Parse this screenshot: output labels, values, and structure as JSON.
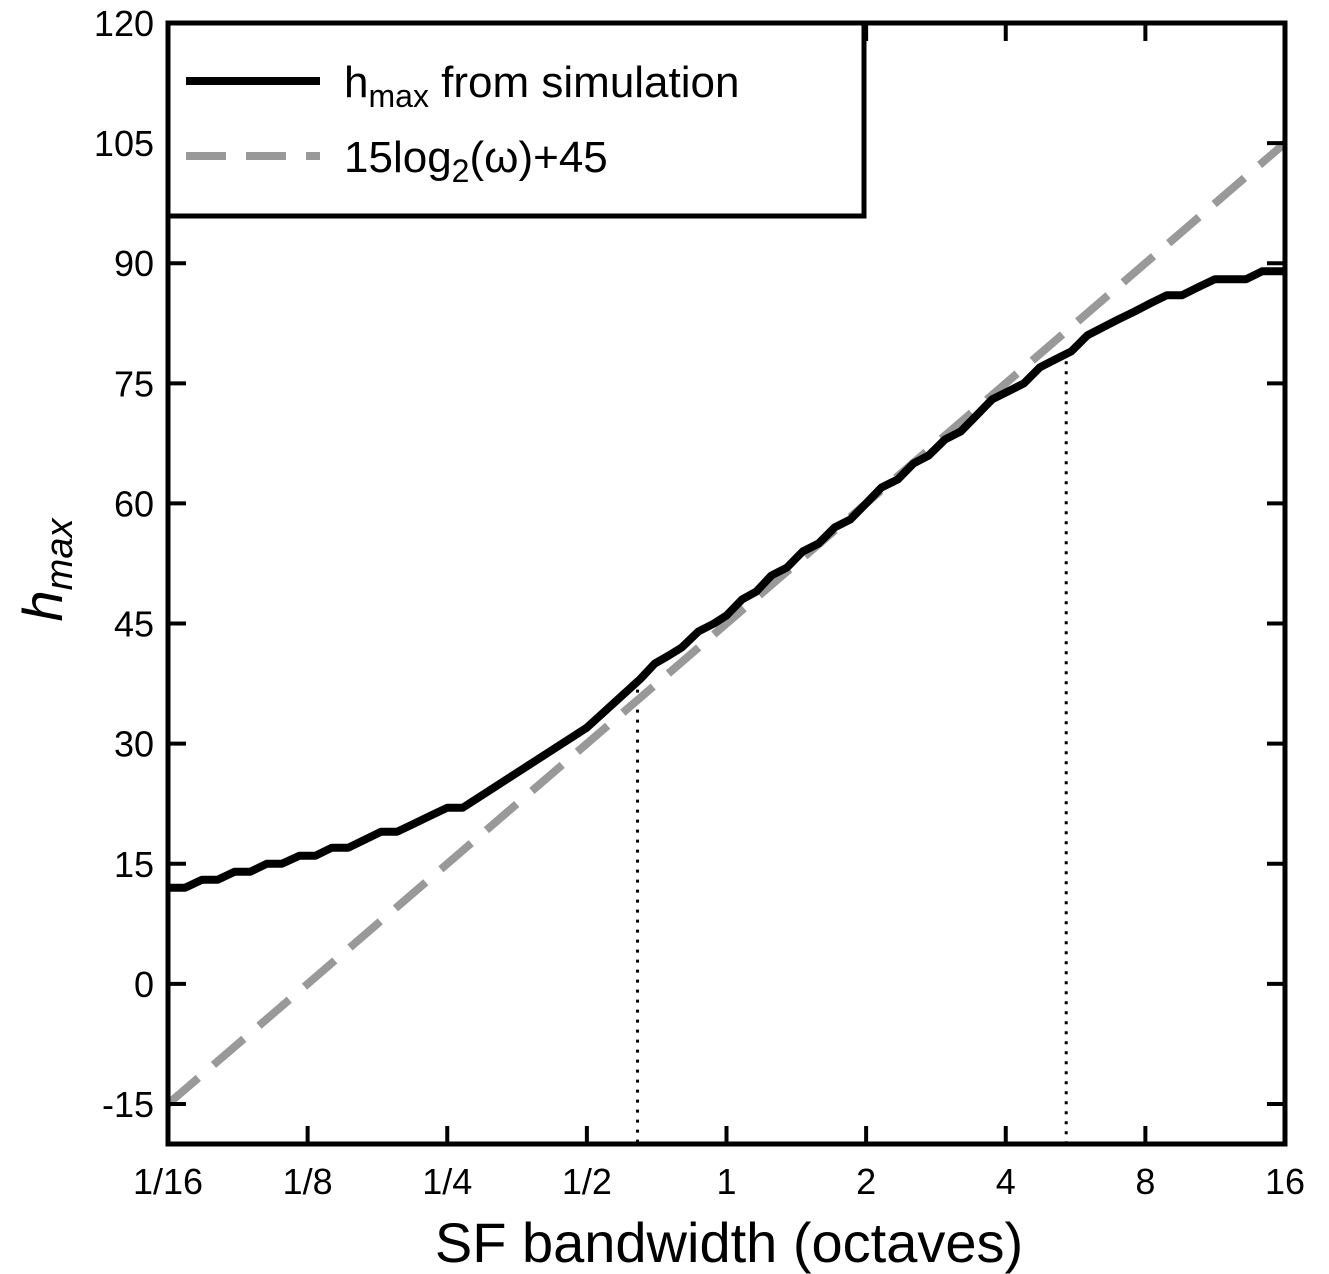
{
  "chart_data": {
    "type": "line",
    "xlabel": "SF bandwidth (octaves)",
    "ylabel": {
      "main": "h",
      "sub": "max"
    },
    "x_scale": "log2",
    "xlim": [
      0.0625,
      16
    ],
    "ylim": [
      -20,
      120
    ],
    "x_ticks": [
      {
        "value": 0.0625,
        "label": "1/16"
      },
      {
        "value": 0.125,
        "label": "1/8"
      },
      {
        "value": 0.25,
        "label": "1/4"
      },
      {
        "value": 0.5,
        "label": "1/2"
      },
      {
        "value": 1,
        "label": "1"
      },
      {
        "value": 2,
        "label": "2"
      },
      {
        "value": 4,
        "label": "4"
      },
      {
        "value": 8,
        "label": "8"
      },
      {
        "value": 16,
        "label": "16"
      }
    ],
    "y_ticks": [
      {
        "value": -15,
        "label": "-15"
      },
      {
        "value": 0,
        "label": "0"
      },
      {
        "value": 15,
        "label": "15"
      },
      {
        "value": 30,
        "label": "30"
      },
      {
        "value": 45,
        "label": "45"
      },
      {
        "value": 60,
        "label": "60"
      },
      {
        "value": 75,
        "label": "75"
      },
      {
        "value": 90,
        "label": "90"
      },
      {
        "value": 105,
        "label": "105"
      },
      {
        "value": 120,
        "label": "120"
      }
    ],
    "grid": false,
    "legend_position": "top-left",
    "series": [
      {
        "name": "h_max from simulation",
        "legend": {
          "main": "h",
          "sub": "max",
          "rest": " from simulation"
        },
        "color": "#000000",
        "style": "solid",
        "points": [
          [
            0.0625,
            12
          ],
          [
            0.068,
            12
          ],
          [
            0.074,
            13
          ],
          [
            0.08,
            13
          ],
          [
            0.087,
            14
          ],
          [
            0.094,
            14
          ],
          [
            0.102,
            15
          ],
          [
            0.11,
            15
          ],
          [
            0.12,
            16
          ],
          [
            0.13,
            16
          ],
          [
            0.141,
            17
          ],
          [
            0.153,
            17
          ],
          [
            0.166,
            18
          ],
          [
            0.18,
            19
          ],
          [
            0.195,
            19
          ],
          [
            0.212,
            20
          ],
          [
            0.23,
            21
          ],
          [
            0.25,
            22
          ],
          [
            0.27,
            22
          ],
          [
            0.5,
            32
          ],
          [
            0.65,
            38
          ],
          [
            0.7,
            40
          ],
          [
            0.75,
            41
          ],
          [
            0.8,
            42
          ],
          [
            0.87,
            44
          ],
          [
            0.94,
            45
          ],
          [
            1.0,
            46
          ],
          [
            1.08,
            48
          ],
          [
            1.16,
            49
          ],
          [
            1.25,
            51
          ],
          [
            1.35,
            52
          ],
          [
            1.46,
            54
          ],
          [
            1.58,
            55
          ],
          [
            1.71,
            57
          ],
          [
            1.85,
            58
          ],
          [
            2.0,
            60
          ],
          [
            2.16,
            62
          ],
          [
            2.34,
            63
          ],
          [
            2.53,
            65
          ],
          [
            2.73,
            66
          ],
          [
            2.96,
            68
          ],
          [
            3.2,
            69
          ],
          [
            3.46,
            71
          ],
          [
            3.74,
            73
          ],
          [
            4.05,
            74
          ],
          [
            4.38,
            75
          ],
          [
            4.74,
            77
          ],
          [
            5.12,
            78
          ],
          [
            5.54,
            79
          ],
          [
            6.0,
            81
          ],
          [
            6.48,
            82
          ],
          [
            7.0,
            83
          ],
          [
            7.6,
            84
          ],
          [
            8.2,
            85
          ],
          [
            8.9,
            86
          ],
          [
            9.6,
            86
          ],
          [
            10.4,
            87
          ],
          [
            11.3,
            88
          ],
          [
            12.2,
            88
          ],
          [
            13.2,
            88
          ],
          [
            14.3,
            89
          ],
          [
            16,
            89
          ]
        ]
      },
      {
        "name": "15log2(ω)+45",
        "legend": {
          "pre": "15log",
          "sub": "2",
          "post": "(ω)+45"
        },
        "color": "#999999",
        "style": "dashed",
        "formula": "y = 15*log2(x) + 45",
        "points": [
          [
            0.0625,
            -15
          ],
          [
            16,
            105
          ]
        ]
      }
    ],
    "annotations": [
      {
        "type": "vline",
        "style": "dotted",
        "x": 0.643,
        "y_from": -20,
        "y_to": 38
      },
      {
        "type": "vline",
        "style": "dotted",
        "x": 5.4,
        "y_from": -20,
        "y_to": 79
      }
    ]
  }
}
